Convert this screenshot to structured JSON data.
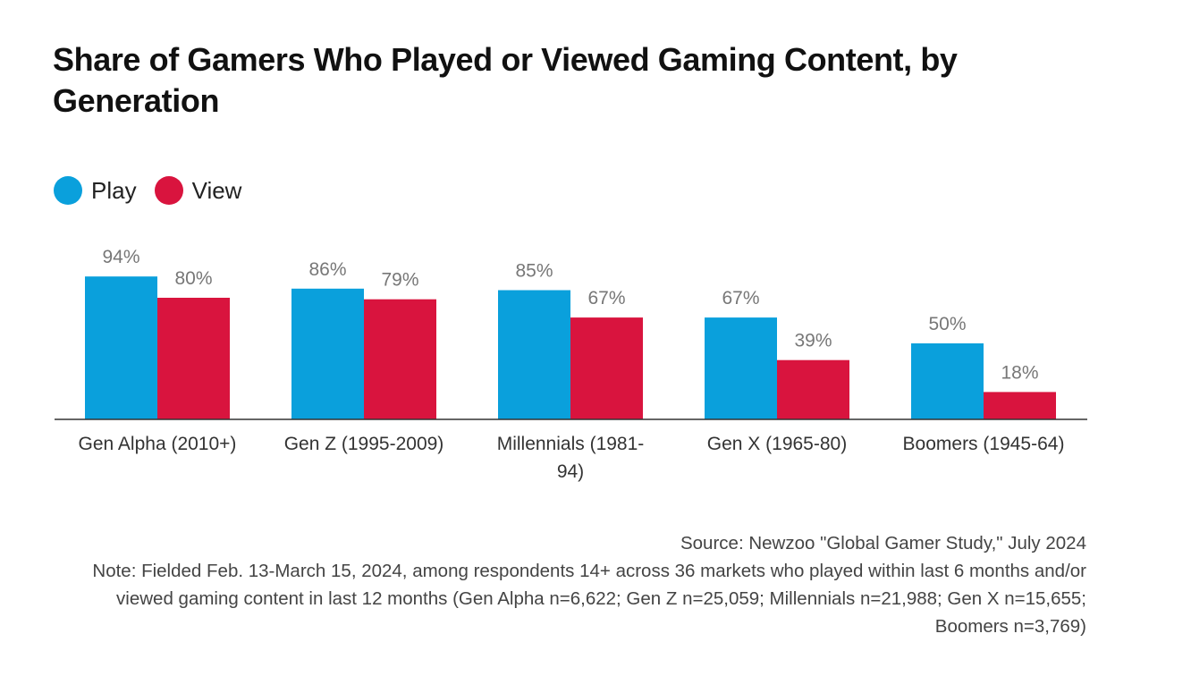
{
  "colors": {
    "play": "#0aa0dc",
    "view": "#d9143e",
    "axis": "#333333",
    "value_label": "#777777",
    "tick_label": "#333333"
  },
  "legend": {
    "items": [
      {
        "label": "Play",
        "color": "#0aa0dc"
      },
      {
        "label": "View",
        "color": "#d9143e"
      }
    ]
  },
  "notes": {
    "source": "Source: Newzoo \"Global Gamer Study,\" July 2024",
    "note": "Note: Fielded Feb. 13-March 15, 2024, among respondents 14+ across 36 markets who played within last 6 months and/or viewed gaming content in last 12 months (Gen Alpha n=6,622; Gen Z n=25,059; Millennials n=21,988; Gen X n=15,655; Boomers n=3,769)"
  },
  "chart_data": {
    "type": "bar",
    "title": "Share of Gamers Who Played or Viewed Gaming Content, by Generation",
    "xlabel": "",
    "ylabel": "",
    "ylim": [
      0,
      100
    ],
    "grid": false,
    "legend_position": "top-left",
    "categories": [
      "Gen Alpha (2010+)",
      "Gen Z (1995-2009)",
      "Millennials (1981-94)",
      "Gen X (1965-80)",
      "Boomers (1945-64)"
    ],
    "category_lines": [
      [
        "Gen Alpha (2010+)"
      ],
      [
        "Gen Z (1995-2009)"
      ],
      [
        "Millennials (1981-",
        "94)"
      ],
      [
        "Gen X (1965-80)"
      ],
      [
        "Boomers (1945-64)"
      ]
    ],
    "series": [
      {
        "name": "Play",
        "values": [
          94,
          86,
          85,
          67,
          50
        ],
        "labels": [
          "94%",
          "86%",
          "85%",
          "67%",
          "50%"
        ]
      },
      {
        "name": "View",
        "values": [
          80,
          79,
          67,
          39,
          18
        ],
        "labels": [
          "80%",
          "79%",
          "67%",
          "39%",
          "18%"
        ]
      }
    ]
  }
}
